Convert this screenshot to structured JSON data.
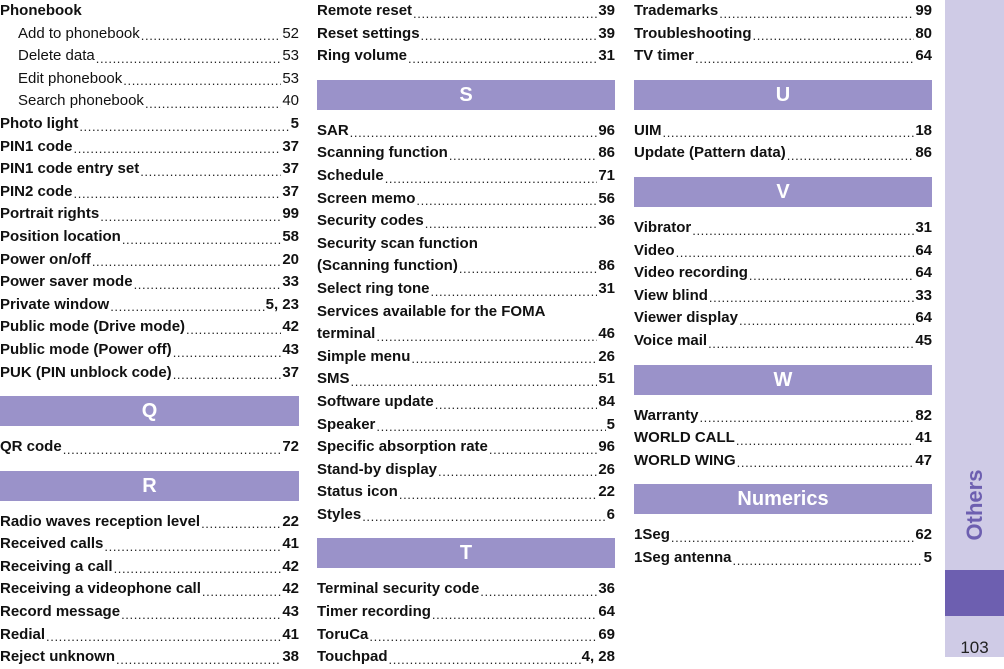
{
  "sidebar": {
    "label": "Others",
    "page_number": "103"
  },
  "col1": {
    "a1": {
      "t": "Phonebook"
    },
    "a2": {
      "t": "Add to phonebook",
      "p": "52"
    },
    "a3": {
      "t": "Delete data",
      "p": "53"
    },
    "a4": {
      "t": "Edit phonebook",
      "p": "53"
    },
    "a5": {
      "t": "Search phonebook",
      "p": "40"
    },
    "a6": {
      "t": "Photo light",
      "p": "5"
    },
    "a7": {
      "t": "PIN1 code",
      "p": "37"
    },
    "a8": {
      "t": "PIN1 code entry set",
      "p": "37"
    },
    "a9": {
      "t": "PIN2 code",
      "p": "37"
    },
    "a10": {
      "t": "Portrait rights",
      "p": "99"
    },
    "a11": {
      "t": "Position location",
      "p": "58"
    },
    "a12": {
      "t": "Power on/off",
      "p": "20"
    },
    "a13": {
      "t": "Power saver mode",
      "p": "33"
    },
    "a14": {
      "t": "Private window",
      "p": "5, 23"
    },
    "a15": {
      "t": "Public mode (Drive mode)",
      "p": "42"
    },
    "a16": {
      "t": "Public mode (Power off)",
      "p": "43"
    },
    "a17": {
      "t": "PUK (PIN unblock code)",
      "p": "37"
    },
    "secQ": "Q",
    "q1": {
      "t": "QR code",
      "p": "72"
    },
    "secR": "R",
    "r1": {
      "t": "Radio waves reception level",
      "p": "22"
    },
    "r2": {
      "t": "Received calls",
      "p": "41"
    },
    "r3": {
      "t": "Receiving a call",
      "p": "42"
    },
    "r4": {
      "t": "Receiving a videophone call",
      "p": "42"
    },
    "r5": {
      "t": "Record message",
      "p": "43"
    },
    "r6": {
      "t": "Redial",
      "p": "41"
    },
    "r7": {
      "t": "Reject unknown",
      "p": "38"
    }
  },
  "col2": {
    "b1": {
      "t": "Remote reset",
      "p": "39"
    },
    "b2": {
      "t": "Reset settings",
      "p": "39"
    },
    "b3": {
      "t": "Ring volume",
      "p": "31"
    },
    "secS": "S",
    "s1": {
      "t": "SAR",
      "p": "96"
    },
    "s2": {
      "t": "Scanning function",
      "p": "86"
    },
    "s3": {
      "t": "Schedule",
      "p": "71"
    },
    "s4": {
      "t": "Screen memo",
      "p": "56"
    },
    "s5": {
      "t": "Security codes",
      "p": "36"
    },
    "s6a": "Security scan function",
    "s6": {
      "t": "(Scanning function)",
      "p": "86"
    },
    "s7": {
      "t": "Select ring tone",
      "p": "31"
    },
    "s8a": "Services available for the FOMA",
    "s8": {
      "t": "terminal",
      "p": "46"
    },
    "s9": {
      "t": "Simple menu",
      "p": "26"
    },
    "s10": {
      "t": "SMS",
      "p": "51"
    },
    "s11": {
      "t": "Software update",
      "p": "84"
    },
    "s12": {
      "t": "Speaker",
      "p": "5"
    },
    "s13": {
      "t": "Specific absorption rate",
      "p": "96"
    },
    "s14": {
      "t": "Stand-by display",
      "p": "26"
    },
    "s15": {
      "t": "Status icon",
      "p": "22"
    },
    "s16": {
      "t": "Styles",
      "p": "6"
    },
    "secT": "T",
    "t1": {
      "t": "Terminal security code",
      "p": "36"
    },
    "t2": {
      "t": "Timer recording",
      "p": "64"
    },
    "t3": {
      "t": "ToruCa",
      "p": "69"
    },
    "t4": {
      "t": "Touchpad",
      "p": "4, 28"
    }
  },
  "col3": {
    "c1": {
      "t": "Trademarks",
      "p": "99"
    },
    "c2": {
      "t": "Troubleshooting",
      "p": "80"
    },
    "c3": {
      "t": "TV timer",
      "p": "64"
    },
    "secU": "U",
    "u1": {
      "t": "UIM",
      "p": "18"
    },
    "u2": {
      "t": "Update (Pattern data)",
      "p": "86"
    },
    "secV": "V",
    "v1": {
      "t": "Vibrator",
      "p": "31"
    },
    "v2": {
      "t": "Video",
      "p": "64"
    },
    "v3": {
      "t": "Video recording",
      "p": "64"
    },
    "v4": {
      "t": "View blind",
      "p": "33"
    },
    "v5": {
      "t": "Viewer display",
      "p": "64"
    },
    "v6": {
      "t": "Voice mail",
      "p": "45"
    },
    "secW": "W",
    "w1": {
      "t": "Warranty",
      "p": "82"
    },
    "w2": {
      "t": "WORLD CALL",
      "p": "41"
    },
    "w3": {
      "t": "WORLD WING",
      "p": "47"
    },
    "secN": "Numerics",
    "n1": {
      "t": "1Seg",
      "p": "62"
    },
    "n2": {
      "t": "1Seg antenna",
      "p": "5"
    }
  }
}
